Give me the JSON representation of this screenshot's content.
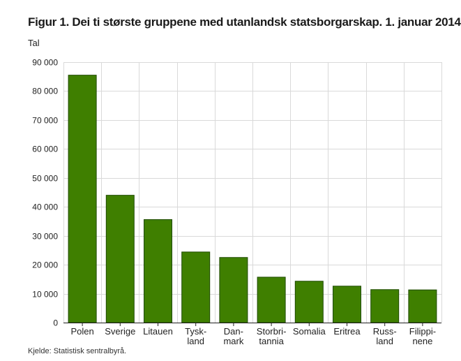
{
  "chart_data": {
    "type": "bar",
    "title": "Figur 1. Dei ti største gruppene med utanlandsk statsborgarskap. 1. januar 2014",
    "ylabel": "Tal",
    "xlabel": "",
    "categories": [
      [
        "Polen"
      ],
      [
        "Sverige"
      ],
      [
        "Litauen"
      ],
      [
        "Tysk-",
        "land"
      ],
      [
        "Dan-",
        "mark"
      ],
      [
        "Storbri-",
        "tannia"
      ],
      [
        "Somalia"
      ],
      [
        "Eritrea"
      ],
      [
        "Russ-",
        "land"
      ],
      [
        "Filippi-",
        "nene"
      ]
    ],
    "values": [
      85500,
      44000,
      35600,
      24400,
      22500,
      15700,
      14300,
      12600,
      11400,
      11300
    ],
    "ylim": [
      0,
      90000
    ],
    "yticks": [
      0,
      10000,
      20000,
      30000,
      40000,
      50000,
      60000,
      70000,
      80000,
      90000
    ],
    "ytick_labels": [
      "0",
      "10 000",
      "20 000",
      "30 000",
      "40 000",
      "50 000",
      "60 000",
      "70 000",
      "80 000",
      "90 000"
    ],
    "bar_color": "#3f7f00",
    "bar_edge_color": "#1e4a00",
    "grid": true,
    "source": "Kjelde: Statistisk sentralbyrå."
  }
}
